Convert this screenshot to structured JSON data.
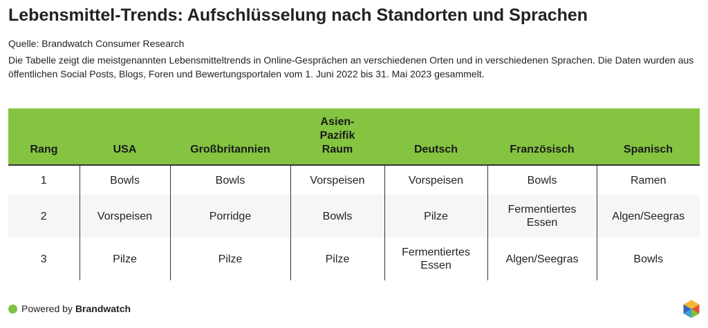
{
  "title": "Lebensmittel-Trends: Aufschlüsselung nach Standorten und Sprachen",
  "source": "Quelle: Brandwatch Consumer Research",
  "description": "Die Tabelle zeigt die meistgenannten Lebensmitteltrends in Online-Gesprächen an verschiedenen Orten und in verschiedenen Sprachen. Die Daten wurden aus öffentlichen Social Posts, Blogs, Foren und Bewertungsportalen vom 1. Juni 2022 bis 31. Mai 2023 gesammelt.",
  "colors": {
    "header_bg": "#85c441",
    "accent_dot": "#7dc242"
  },
  "chart_data": {
    "type": "table",
    "columns": [
      "Rang",
      "USA",
      "Großbritannien",
      "Asien-Pazifik Raum",
      "Deutsch",
      "Französisch",
      "Spanisch"
    ],
    "rows": [
      [
        "1",
        "Bowls",
        "Bowls",
        "Vorspeisen",
        "Vorspeisen",
        "Bowls",
        "Ramen"
      ],
      [
        "2",
        "Vorspeisen",
        "Porridge",
        "Bowls",
        "Pilze",
        "Fermentiertes Essen",
        "Algen/Seegras"
      ],
      [
        "3",
        "Pilze",
        "Pilze",
        "Pilze",
        "Fermentiertes Essen",
        "Algen/Seegras",
        "Bowls"
      ]
    ]
  },
  "footer": {
    "prefix": "Powered by",
    "brand": "Brandwatch",
    "logo_icon": "brandwatch-hexagon-logo"
  }
}
